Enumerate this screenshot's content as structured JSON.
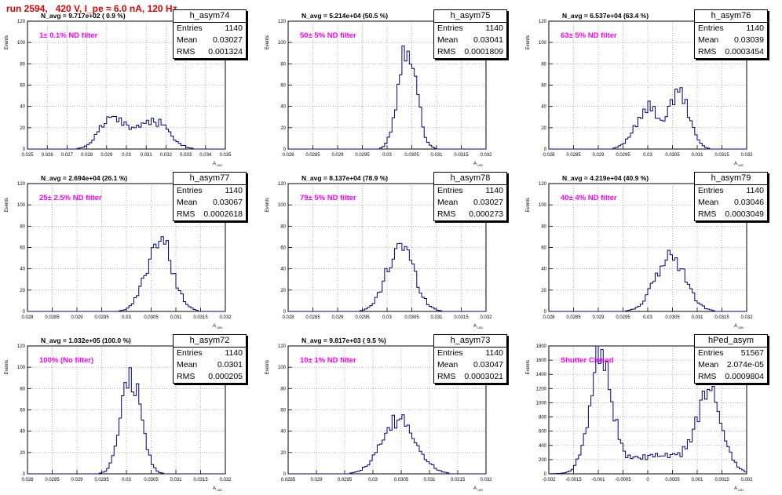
{
  "page_title": "run 2594,   420 V, I_pe ≈ 6.0 nA, 120 Hz",
  "colors": {
    "title": "#e00000",
    "hist_line": "#000080",
    "filter_text": "#ff00ff",
    "grid": "#808080"
  },
  "panels": [
    {
      "name": "h_asym74",
      "navg": "N_avg = 9.717e+02 ( 0.9 %)",
      "filter": "1± 0.1% ND filter",
      "stats": {
        "entries": "1140",
        "mean": "0.03027",
        "rms": "0.001324"
      }
    },
    {
      "name": "h_asym75",
      "navg": "N_avg = 5.214e+04 (50.5 %)",
      "filter": "50± 5% ND filter",
      "stats": {
        "entries": "1140",
        "mean": "0.03041",
        "rms": "0.0001809"
      }
    },
    {
      "name": "h_asym76",
      "navg": "N_avg = 6.537e+04 (63.4 %)",
      "filter": "63± 5% ND filter",
      "stats": {
        "entries": "1140",
        "mean": "0.03039",
        "rms": "0.0003454"
      }
    },
    {
      "name": "h_asym77",
      "navg": "N_avg = 2.694e+04 (26.1 %)",
      "filter": "25± 2.5% ND filter",
      "stats": {
        "entries": "1140",
        "mean": "0.03067",
        "rms": "0.0002618"
      }
    },
    {
      "name": "h_asym78",
      "navg": "N_avg = 8.137e+04 (78.9 %)",
      "filter": "79± 5% ND filter",
      "stats": {
        "entries": "1140",
        "mean": "0.03027",
        "rms": "0.000273"
      }
    },
    {
      "name": "h_asym79",
      "navg": "N_avg = 4.219e+04 (40.9 %)",
      "filter": "40± 4% ND filter",
      "stats": {
        "entries": "1140",
        "mean": "0.03046",
        "rms": "0.0003049"
      }
    },
    {
      "name": "h_asym72",
      "navg": "N_avg = 1.032e+05 (100.0 %)",
      "filter": "100% (No filter)",
      "stats": {
        "entries": "1140",
        "mean": "0.0301",
        "rms": "0.000205"
      }
    },
    {
      "name": "h_asym73",
      "navg": "N_avg = 9.817e+03 ( 9.5 %)",
      "filter": "10± 1% ND filter",
      "stats": {
        "entries": "1140",
        "mean": "0.03047",
        "rms": "0.0003021"
      }
    },
    {
      "name": "hPed_asym",
      "navg": "",
      "filter": "Shutter Closed",
      "stats": {
        "entries": "51567",
        "mean": "2.074e-05",
        "rms": "0.0009804"
      }
    }
  ],
  "stat_labels": {
    "entries": "Entries",
    "mean": "Mean",
    "rms": "RMS"
  },
  "chart_data": [
    {
      "type": "histogram",
      "title": "h_asym74",
      "xlabel": "A_UID",
      "ylabel": "Events",
      "xlim": [
        0.025,
        0.035
      ],
      "ylim": [
        0,
        120
      ],
      "xticks": [
        "0.025",
        "0.026",
        "0.027",
        "0.028",
        "0.029",
        "0.03",
        "0.031",
        "0.032",
        "0.033",
        "0.034",
        "0.035"
      ],
      "yticks": [
        "0",
        "20",
        "40",
        "60",
        "80",
        "100",
        "120"
      ],
      "peaks": [
        {
          "mu": 0.0292,
          "sigma": 0.0006,
          "amp": 26
        },
        {
          "mu": 0.0315,
          "sigma": 0.0007,
          "amp": 24
        },
        {
          "mu": 0.0303,
          "sigma": 0.0007,
          "amp": 10
        }
      ]
    },
    {
      "type": "histogram",
      "title": "h_asym75",
      "xlabel": "A_UID",
      "ylabel": "Events",
      "xlim": [
        0.028,
        0.032
      ],
      "ylim": [
        0,
        120
      ],
      "xticks": [
        "0.028",
        "0.0285",
        "0.029",
        "0.0295",
        "0.03",
        "0.0305",
        "0.031",
        "0.0315",
        "0.032"
      ],
      "yticks": [
        "0",
        "20",
        "40",
        "60",
        "80",
        "100",
        "120"
      ],
      "peaks": [
        {
          "mu": 0.03041,
          "sigma": 0.00018,
          "amp": 102
        }
      ]
    },
    {
      "type": "histogram",
      "title": "h_asym76",
      "xlabel": "A_UID",
      "ylabel": "Events",
      "xlim": [
        0.028,
        0.032
      ],
      "ylim": [
        0,
        120
      ],
      "xticks": [
        "0.028",
        "0.0285",
        "0.029",
        "0.0295",
        "0.03",
        "0.0305",
        "0.031",
        "0.0315",
        "0.032"
      ],
      "yticks": [
        "0",
        "20",
        "40",
        "60",
        "80",
        "100",
        "120"
      ],
      "peaks": [
        {
          "mu": 0.03,
          "sigma": 0.00025,
          "amp": 38
        },
        {
          "mu": 0.03065,
          "sigma": 0.0002,
          "amp": 50
        }
      ]
    },
    {
      "type": "histogram",
      "title": "h_asym77",
      "xlabel": "A_UID",
      "ylabel": "Events",
      "xlim": [
        0.028,
        0.032
      ],
      "ylim": [
        0,
        120
      ],
      "xticks": [
        "0.028",
        "0.0285",
        "0.029",
        "0.0295",
        "0.03",
        "0.0305",
        "0.031",
        "0.0315",
        "0.032"
      ],
      "yticks": [
        "0",
        "20",
        "40",
        "60",
        "80",
        "100",
        "120"
      ],
      "peaks": [
        {
          "mu": 0.03067,
          "sigma": 0.00026,
          "amp": 68
        }
      ]
    },
    {
      "type": "histogram",
      "title": "h_asym78",
      "xlabel": "A_UID",
      "ylabel": "Events",
      "xlim": [
        0.028,
        0.032
      ],
      "ylim": [
        0,
        120
      ],
      "xticks": [
        "0.028",
        "0.0285",
        "0.029",
        "0.0295",
        "0.03",
        "0.0305",
        "0.031",
        "0.0315",
        "0.032"
      ],
      "yticks": [
        "0",
        "20",
        "40",
        "60",
        "80",
        "100",
        "120"
      ],
      "peaks": [
        {
          "mu": 0.03027,
          "sigma": 0.00027,
          "amp": 63
        }
      ]
    },
    {
      "type": "histogram",
      "title": "h_asym79",
      "xlabel": "A_UID",
      "ylabel": "Events",
      "xlim": [
        0.028,
        0.032
      ],
      "ylim": [
        0,
        120
      ],
      "xticks": [
        "0.028",
        "0.0285",
        "0.029",
        "0.0295",
        "0.03",
        "0.0305",
        "0.031",
        "0.0315",
        "0.032"
      ],
      "yticks": [
        "0",
        "20",
        "40",
        "60",
        "80",
        "100",
        "120"
      ],
      "peaks": [
        {
          "mu": 0.03046,
          "sigma": 0.0003,
          "amp": 52
        }
      ]
    },
    {
      "type": "histogram",
      "title": "h_asym72",
      "xlabel": "A_UID",
      "ylabel": "Events",
      "xlim": [
        0.028,
        0.032
      ],
      "ylim": [
        0,
        120
      ],
      "xticks": [
        "0.028",
        "0.0285",
        "0.029",
        "0.0295",
        "0.03",
        "0.0305",
        "0.031",
        "0.0315",
        "0.032"
      ],
      "yticks": [
        "0",
        "20",
        "40",
        "60",
        "80",
        "100",
        "120"
      ],
      "peaks": [
        {
          "mu": 0.0301,
          "sigma": 0.0002,
          "amp": 92
        }
      ]
    },
    {
      "type": "histogram",
      "title": "h_asym73",
      "xlabel": "A_UID",
      "ylabel": "Events",
      "xlim": [
        0.0285,
        0.032
      ],
      "ylim": [
        0,
        120
      ],
      "xticks": [
        "0.0285",
        "0.029",
        "0.0295",
        "0.03",
        "0.0305",
        "0.031",
        "0.0315",
        "0.032"
      ],
      "yticks": [
        "0",
        "20",
        "40",
        "60",
        "80",
        "100",
        "120"
      ],
      "peaks": [
        {
          "mu": 0.03047,
          "sigma": 0.0003,
          "amp": 50
        }
      ]
    },
    {
      "type": "histogram",
      "title": "hPed_asym",
      "xlabel": "A_UID",
      "ylabel": "Events",
      "xlim": [
        -0.002,
        0.002
      ],
      "ylim": [
        0,
        1800
      ],
      "xticks": [
        "-0.002",
        "-0.0015",
        "-0.001",
        "-0.0005",
        "0",
        "0.0005",
        "0.001",
        "0.0015",
        "0.002"
      ],
      "yticks": [
        "0",
        "200",
        "400",
        "600",
        "800",
        "1000",
        "1200",
        "1400",
        "1600",
        "1800"
      ],
      "peaks": [
        {
          "mu": -0.00095,
          "sigma": 0.00022,
          "amp": 1650
        },
        {
          "mu": 0.00125,
          "sigma": 0.00026,
          "amp": 1050
        },
        {
          "mu": 0.0002,
          "sigma": 0.0007,
          "amp": 250
        }
      ]
    }
  ]
}
